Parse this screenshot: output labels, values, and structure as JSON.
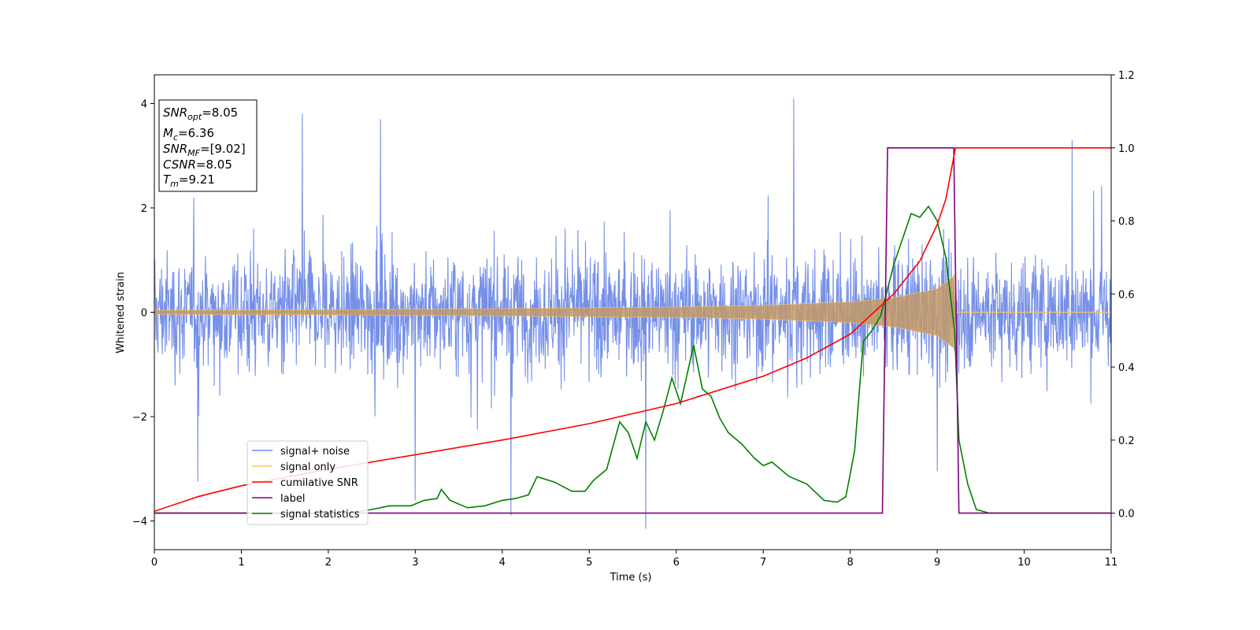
{
  "chart_data": {
    "type": "line",
    "xlabel": "Time (s)",
    "ylabel": "Whitened strain",
    "xlim": [
      0,
      11
    ],
    "ylim": [
      -4.55,
      4.55
    ],
    "y2lim": [
      -0.1,
      1.2
    ],
    "x_ticks": [
      0,
      1,
      2,
      3,
      4,
      5,
      6,
      7,
      8,
      9,
      10,
      11
    ],
    "y_ticks": [
      -4,
      -2,
      0,
      2,
      4
    ],
    "y2_ticks": [
      "0.0",
      "0.2",
      "0.4",
      "0.6",
      "0.8",
      "1.0",
      "1.2"
    ],
    "grid": false,
    "legend_position": "lower-left",
    "annotation": {
      "snr_opt": "8.05",
      "mc": "6.36",
      "snr_mf": "[9.02]",
      "csnr": "8.05",
      "tm": "9.21"
    },
    "series": [
      {
        "name": "signal+ noise",
        "axis": "left",
        "color": "#6f8ae6",
        "description_values": "random noise approx std 0.75 spanning -4.2 to 4.1 across 0-11 s",
        "envelope_peaks": [
          [
            0.5,
            -3.25
          ],
          [
            1.7,
            3.8
          ],
          [
            2.6,
            3.7
          ],
          [
            3.0,
            -3.6
          ],
          [
            4.1,
            -3.9
          ],
          [
            5.65,
            -4.15
          ],
          [
            7.35,
            4.1
          ],
          [
            9.0,
            -3.05
          ],
          [
            10.55,
            3.3
          ]
        ]
      },
      {
        "name": "signal only",
        "axis": "left",
        "color": "#f5c26b",
        "amplitude_points": [
          [
            0,
            0.04
          ],
          [
            2,
            0.05
          ],
          [
            4,
            0.07
          ],
          [
            6,
            0.1
          ],
          [
            7,
            0.13
          ],
          [
            8,
            0.2
          ],
          [
            8.5,
            0.28
          ],
          [
            9.0,
            0.45
          ],
          [
            9.2,
            0.7
          ],
          [
            9.21,
            0.0
          ],
          [
            11,
            0.0
          ]
        ]
      },
      {
        "name": "cumilative SNR",
        "axis": "right",
        "color": "#ff0000",
        "points": [
          [
            0.0,
            0.005
          ],
          [
            0.5,
            0.045
          ],
          [
            1.0,
            0.075
          ],
          [
            2.0,
            0.12
          ],
          [
            3.0,
            0.16
          ],
          [
            4.0,
            0.2
          ],
          [
            5.0,
            0.245
          ],
          [
            6.0,
            0.3
          ],
          [
            7.0,
            0.375
          ],
          [
            7.5,
            0.425
          ],
          [
            8.0,
            0.49
          ],
          [
            8.5,
            0.6
          ],
          [
            8.8,
            0.69
          ],
          [
            9.0,
            0.79
          ],
          [
            9.1,
            0.86
          ],
          [
            9.21,
            1.0
          ],
          [
            11.0,
            1.0
          ]
        ]
      },
      {
        "name": "label",
        "axis": "right",
        "color": "#800080",
        "points": [
          [
            0.0,
            0.0
          ],
          [
            8.37,
            0.0
          ],
          [
            8.43,
            1.0
          ],
          [
            9.19,
            1.0
          ],
          [
            9.25,
            0.0
          ],
          [
            11.0,
            0.0
          ]
        ]
      },
      {
        "name": "signal statistics",
        "axis": "right",
        "color": "#008000",
        "points": [
          [
            0.0,
            0.0
          ],
          [
            1.5,
            0.0
          ],
          [
            2.2,
            0.0
          ],
          [
            2.5,
            0.01
          ],
          [
            2.7,
            0.02
          ],
          [
            2.95,
            0.02
          ],
          [
            3.1,
            0.035
          ],
          [
            3.25,
            0.04
          ],
          [
            3.3,
            0.065
          ],
          [
            3.4,
            0.035
          ],
          [
            3.6,
            0.015
          ],
          [
            3.8,
            0.02
          ],
          [
            4.0,
            0.035
          ],
          [
            4.15,
            0.04
          ],
          [
            4.3,
            0.05
          ],
          [
            4.4,
            0.1
          ],
          [
            4.6,
            0.085
          ],
          [
            4.8,
            0.06
          ],
          [
            4.95,
            0.06
          ],
          [
            5.05,
            0.09
          ],
          [
            5.2,
            0.12
          ],
          [
            5.35,
            0.25
          ],
          [
            5.45,
            0.22
          ],
          [
            5.55,
            0.15
          ],
          [
            5.65,
            0.25
          ],
          [
            5.75,
            0.2
          ],
          [
            5.85,
            0.28
          ],
          [
            5.95,
            0.37
          ],
          [
            6.05,
            0.3
          ],
          [
            6.2,
            0.46
          ],
          [
            6.3,
            0.34
          ],
          [
            6.4,
            0.32
          ],
          [
            6.5,
            0.26
          ],
          [
            6.6,
            0.22
          ],
          [
            6.75,
            0.19
          ],
          [
            6.9,
            0.15
          ],
          [
            7.0,
            0.13
          ],
          [
            7.1,
            0.14
          ],
          [
            7.3,
            0.1
          ],
          [
            7.5,
            0.08
          ],
          [
            7.7,
            0.035
          ],
          [
            7.85,
            0.03
          ],
          [
            7.95,
            0.045
          ],
          [
            8.05,
            0.17
          ],
          [
            8.15,
            0.47
          ],
          [
            8.25,
            0.5
          ],
          [
            8.35,
            0.54
          ],
          [
            8.5,
            0.68
          ],
          [
            8.6,
            0.75
          ],
          [
            8.7,
            0.82
          ],
          [
            8.8,
            0.81
          ],
          [
            8.9,
            0.84
          ],
          [
            9.0,
            0.8
          ],
          [
            9.1,
            0.7
          ],
          [
            9.2,
            0.5
          ],
          [
            9.25,
            0.2
          ],
          [
            9.35,
            0.08
          ],
          [
            9.45,
            0.01
          ],
          [
            9.6,
            0.0
          ],
          [
            10.5,
            0.0
          ],
          [
            11.0,
            0.0
          ]
        ]
      }
    ]
  }
}
